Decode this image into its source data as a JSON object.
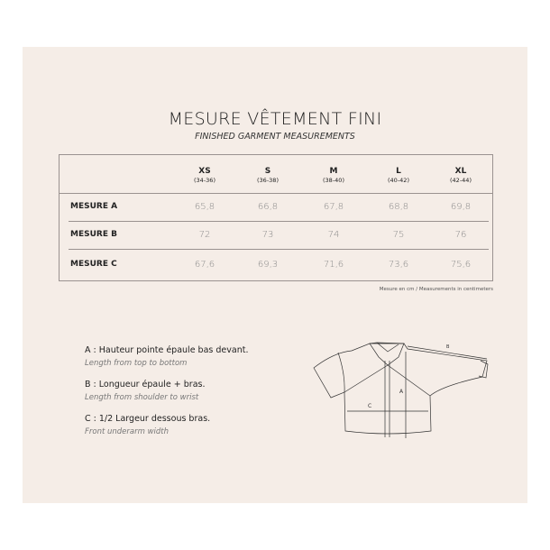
{
  "title": "MESURE VÊTEMENT FINI",
  "subtitle": "FINISHED GARMENT MEASUREMENTS",
  "table": {
    "sizes": [
      {
        "size": "XS",
        "range": "(34-36)"
      },
      {
        "size": "S",
        "range": "(36-38)"
      },
      {
        "size": "M",
        "range": "(38-40)"
      },
      {
        "size": "L",
        "range": "(40-42)"
      },
      {
        "size": "XL",
        "range": "(42-44)"
      }
    ],
    "rows": [
      {
        "label": "MESURE A",
        "values": [
          "65,8",
          "66,8",
          "67,8",
          "68,8",
          "69,8"
        ]
      },
      {
        "label": "MESURE B",
        "values": [
          "72",
          "73",
          "74",
          "75",
          "76"
        ]
      },
      {
        "label": "MESURE C",
        "values": [
          "67,6",
          "69,3",
          "71,6",
          "73,6",
          "75,6"
        ]
      }
    ]
  },
  "note": "Mesure en cm / Measurements in centimeters",
  "legend": [
    {
      "fr": "A : Hauteur pointe épaule bas devant.",
      "en": "Length from top to bottom"
    },
    {
      "fr": "B : Longueur épaule + bras.",
      "en": "Length from shoulder to wrist"
    },
    {
      "fr": "C : 1/2 Largeur dessous bras.",
      "en": "Front underarm width"
    }
  ],
  "diagram": {
    "label_a": "A",
    "label_b": "B",
    "label_c": "C"
  }
}
